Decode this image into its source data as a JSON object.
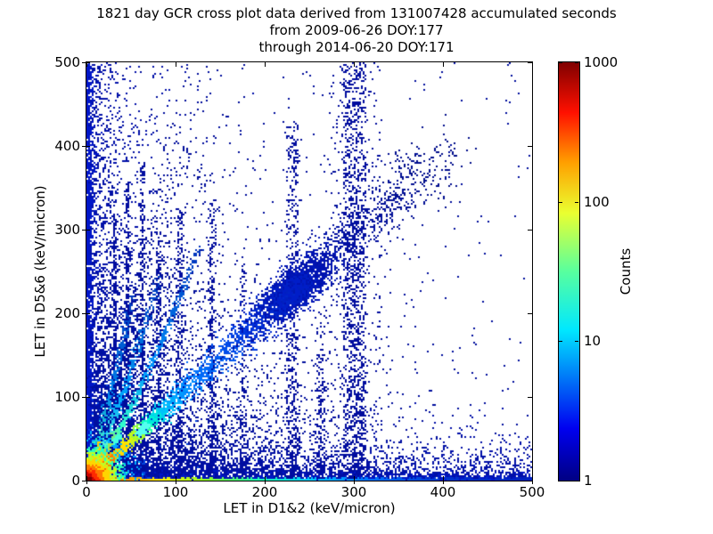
{
  "title": {
    "line1": "1821 day GCR cross plot data derived from 131007428 accumulated seconds",
    "line2": "from 2009-06-26 DOY:177",
    "line3": "through 2014-06-20 DOY:171"
  },
  "chart_data": {
    "type": "heatmap",
    "subtype": "2d-histogram-cross-plot",
    "title": "1821 day GCR cross plot data derived from 131007428 accumulated seconds from 2009-06-26 DOY:177 through 2014-06-20 DOY:171",
    "xlabel": "LET in D1&2 (keV/micron)",
    "ylabel": "LET in D5&6 (keV/micron)",
    "xlim": [
      0,
      500
    ],
    "ylim": [
      0,
      500
    ],
    "xticks": [
      0,
      100,
      200,
      300,
      400,
      500
    ],
    "yticks": [
      0,
      100,
      200,
      300,
      400,
      500
    ],
    "grid": false,
    "point_color_single_count": "#000f9e",
    "colorbar": {
      "label": "Counts",
      "scale": "log",
      "ticks": [
        1,
        10,
        100,
        1000
      ],
      "tick_labels": [
        "1",
        "10",
        "100",
        "1000"
      ],
      "colormap": "jet",
      "stops": [
        [
          0,
          "#000083"
        ],
        [
          0.125,
          "#0000f0"
        ],
        [
          0.36,
          "#00e8ff"
        ],
        [
          0.5,
          "#58ff9e"
        ],
        [
          0.64,
          "#eaff30"
        ],
        [
          0.76,
          "#ffa000"
        ],
        [
          0.88,
          "#ff1000"
        ],
        [
          1,
          "#800000"
        ]
      ]
    },
    "structures_note": "hot spot at origin ~1000 counts; bright ridge along y=x with knots at (25,25),(40,40),(62,62); dense diagonal blob near (230,228); steep ion tracks of slopes ~1.5,2.3,3.6 from origin; vertical count stripes near x=31,45,62,80,104,140,175,230,262,300; dense bands hugging both axes; colored bottom line fading red->yellow->cyan->blue with x",
    "features": [
      {
        "type": "scatter2",
        "name": "background-corner",
        "count": 5200,
        "x": {
          "d": "exp",
          "s": 95
        },
        "y": {
          "d": "exp",
          "s": 85
        },
        "color": "#000f9e"
      },
      {
        "type": "scatter2",
        "name": "background-uniform",
        "count": 320,
        "x": {
          "d": "uni",
          "p": 1
        },
        "y": {
          "d": "uni",
          "p": 1
        },
        "color": "#000f9e"
      },
      {
        "type": "scatter2",
        "name": "left-column-halo",
        "count": 2000,
        "x": {
          "d": "exp",
          "s": 26
        },
        "y": {
          "d": "uni",
          "p": 1.35
        },
        "color": "#000fa8"
      },
      {
        "type": "scatter2",
        "name": "bottom-band-halo",
        "count": 3400,
        "x": {
          "d": "uni",
          "p": 1.3
        },
        "y": {
          "d": "exp",
          "s": 15
        },
        "color": "#000fa8"
      },
      {
        "type": "scatter2",
        "name": "left-edge-line",
        "count": 1600,
        "x": {
          "d": "exp",
          "s": 2.2
        },
        "y": {
          "d": "uni",
          "p": 1.25
        },
        "color": "#0016c8"
      },
      {
        "type": "scatter2",
        "name": "bottom-edge-line",
        "count": 1700,
        "x": {
          "d": "uni",
          "p": 1.15
        },
        "y": {
          "d": "exp",
          "s": 2.6
        },
        "color": "#0016c8"
      },
      {
        "type": "wedge",
        "name": "upper-left-fan-fill",
        "count": 1500,
        "xs": 55,
        "fmin": 1.15,
        "fmax": 4.5,
        "color": "#000d99"
      },
      {
        "type": "stripe",
        "name": "stripe-x31",
        "x": 31,
        "w": 1.6,
        "ymax": 320,
        "count": 260,
        "pow": 1.3,
        "color": "#000c9e"
      },
      {
        "type": "stripe",
        "name": "stripe-x45",
        "x": 45,
        "w": 1.8,
        "ymax": 360,
        "count": 300,
        "pow": 1.3,
        "color": "#000c9e"
      },
      {
        "type": "stripe",
        "name": "stripe-x62",
        "x": 62,
        "w": 2.2,
        "ymax": 380,
        "count": 300,
        "pow": 1.3,
        "color": "#000c9e"
      },
      {
        "type": "stripe",
        "name": "stripe-x80",
        "x": 80,
        "w": 2.6,
        "ymax": 300,
        "count": 220,
        "pow": 1.3,
        "color": "#000c9e"
      },
      {
        "type": "stripe",
        "name": "stripe-x104",
        "x": 104,
        "w": 3,
        "ymax": 330,
        "count": 260,
        "pow": 1.3,
        "color": "#000c9e"
      },
      {
        "type": "stripe",
        "name": "stripe-x140",
        "x": 140,
        "w": 4,
        "ymax": 340,
        "count": 300,
        "pow": 1.3,
        "color": "#000c9e"
      },
      {
        "type": "stripe",
        "name": "stripe-x175",
        "x": 175,
        "w": 3.5,
        "ymax": 260,
        "count": 140,
        "pow": 1.3,
        "color": "#000c9e"
      },
      {
        "type": "stripe",
        "name": "stripe-x230",
        "x": 230,
        "w": 7,
        "ymax": 430,
        "count": 520,
        "pow": 1.3,
        "color": "#000c9e"
      },
      {
        "type": "stripe",
        "name": "stripe-x262",
        "x": 262,
        "w": 5,
        "ymax": 210,
        "count": 150,
        "pow": 1.3,
        "color": "#000c9e"
      },
      {
        "type": "stripe",
        "name": "stripe-x300-core",
        "x": 300,
        "w": 13,
        "ymax": 500,
        "count": 1150,
        "pow": 1.1,
        "color": "#000c9e"
      },
      {
        "type": "stripe",
        "name": "stripe-x300-halo",
        "x": 300,
        "w": 30,
        "ymax": 500,
        "count": 300,
        "pow": 1.0,
        "color": "#000c9e"
      },
      {
        "type": "curve",
        "name": "ion-track-slope-3.6",
        "slope": 3.6,
        "xmax": 52,
        "curv": 260,
        "count": 380,
        "tpow": 1.5,
        "spread": 2.2,
        "stops": [
          [
            0,
            "#ffaa00"
          ],
          [
            0.2,
            "#33eebb"
          ],
          [
            0.5,
            "#0088ee"
          ],
          [
            1,
            "#0033bb"
          ]
        ]
      },
      {
        "type": "curve",
        "name": "ion-track-slope-2.3",
        "slope": 2.3,
        "xmax": 82,
        "curv": 260,
        "count": 520,
        "tpow": 1.6,
        "spread": 2.2,
        "stops": [
          [
            0,
            "#ff8800"
          ],
          [
            0.18,
            "#66ffcc"
          ],
          [
            0.45,
            "#00aaff"
          ],
          [
            1,
            "#0033bb"
          ]
        ]
      },
      {
        "type": "curve",
        "name": "ion-track-slope-1.55",
        "slope": 1.55,
        "xmax": 125,
        "curv": 280,
        "count": 750,
        "tpow": 1.7,
        "spread": 2.0,
        "stops": [
          [
            0,
            "#ff5500"
          ],
          [
            0.12,
            "#ffcc00"
          ],
          [
            0.3,
            "#33ffcc"
          ],
          [
            0.55,
            "#0099ff"
          ],
          [
            1,
            "#0030bb"
          ]
        ]
      },
      {
        "type": "dgauss",
        "name": "diagonal-blob-halo",
        "cx": 232,
        "cy": 228,
        "along": 30,
        "perp": 11,
        "count": 1700,
        "color": "#0013b4"
      },
      {
        "type": "dgauss",
        "name": "diagonal-blob-core",
        "cx": 230,
        "cy": 226,
        "along": 14,
        "perp": 7,
        "count": 600,
        "color": "#001dc8"
      },
      {
        "type": "ridge",
        "name": "main-diagonal-ridge",
        "x0": 2,
        "y0": 2,
        "x1": 400,
        "y1": 396,
        "count": 3200,
        "tpow": 2.2,
        "spread0": 1.2,
        "spread1": 20,
        "stops": [
          [
            0,
            "#ee2200"
          ],
          [
            0.05,
            "#ff8800"
          ],
          [
            0.1,
            "#ffee00"
          ],
          [
            0.14,
            "#99ff33"
          ],
          [
            0.17,
            "#00ffcc"
          ],
          [
            0.22,
            "#00bbff"
          ],
          [
            0.3,
            "#0077ff"
          ],
          [
            0.45,
            "#0033dd"
          ],
          [
            0.65,
            "#0011aa"
          ],
          [
            1,
            "#000d88"
          ]
        ]
      },
      {
        "type": "ridge",
        "name": "bottom-gradient-line",
        "x0": 0,
        "y0": 1.2,
        "x1": 500,
        "y1": 1.2,
        "count": 2600,
        "tpow": 1.8,
        "spread0": 1.0,
        "spread1": 1.6,
        "stops": [
          [
            0,
            "#dd0000"
          ],
          [
            0.04,
            "#ff5500"
          ],
          [
            0.09,
            "#ff9900"
          ],
          [
            0.16,
            "#ffee00"
          ],
          [
            0.26,
            "#99ff22"
          ],
          [
            0.38,
            "#22ffaa"
          ],
          [
            0.5,
            "#00ccff"
          ],
          [
            0.62,
            "#0077ff"
          ],
          [
            0.8,
            "#0033cc"
          ],
          [
            1,
            "#0022bb"
          ]
        ]
      },
      {
        "type": "stripe",
        "name": "bright-stripe-x13",
        "x": 13,
        "w": 0.8,
        "ymax": 50,
        "count": 150,
        "pow": 1.3,
        "color": "#ffcc00"
      },
      {
        "type": "dgauss",
        "name": "diag-knot-25",
        "cx": 25,
        "cy": 25,
        "along": 3,
        "perp": 1.5,
        "count": 130,
        "color": "#ff7700"
      },
      {
        "type": "dgauss",
        "name": "diag-knot-40",
        "cx": 40,
        "cy": 40,
        "along": 3,
        "perp": 1.5,
        "count": 110,
        "color": "#ffdd00"
      },
      {
        "type": "dgauss",
        "name": "diag-knot-62",
        "cx": 62,
        "cy": 62,
        "along": 4,
        "perp": 2,
        "count": 150,
        "color": "#55ffee"
      },
      {
        "type": "dgauss",
        "name": "track-knot-33-51",
        "cx": 33,
        "cy": 51,
        "along": 3,
        "perp": 1.5,
        "count": 90,
        "color": "#44ffdd"
      },
      {
        "type": "blob",
        "name": "origin-hotspot",
        "cx": 0,
        "cy": 0,
        "scales": [
          8,
          22
        ],
        "mix": 0.7,
        "count": 4500,
        "shells": [
          [
            5,
            "#7a0000"
          ],
          [
            9,
            "#c40000"
          ],
          [
            14,
            "#ff2a00"
          ],
          [
            20,
            "#ff7700"
          ],
          [
            27,
            "#ffd500"
          ],
          [
            35,
            "#b8ff2a"
          ],
          [
            45,
            "#2affbb"
          ],
          [
            60,
            "#00aaff"
          ],
          [
            9999,
            "#0044dd"
          ]
        ]
      }
    ]
  }
}
